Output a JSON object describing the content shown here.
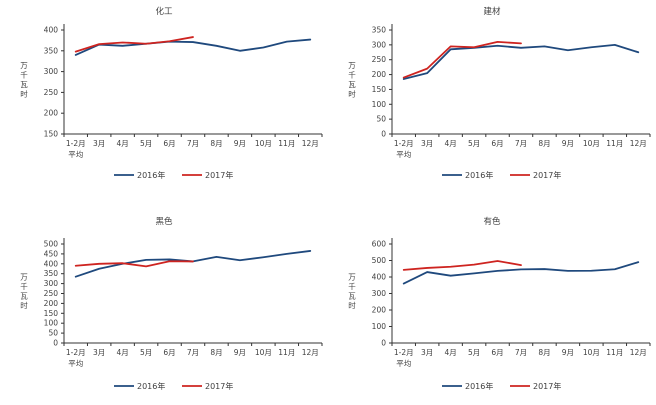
{
  "page": {
    "background": "#ffffff"
  },
  "colors": {
    "series_2016": "#1F497D",
    "series_2017": "#CE2420",
    "axis": "#333333",
    "text": "#404040"
  },
  "chart_data": [
    {
      "type": "line",
      "title": "化工",
      "ylabel": "万千瓦时",
      "xlabel": "",
      "ylim": [
        150,
        400
      ],
      "yticks": [
        150,
        200,
        250,
        300,
        350,
        400
      ],
      "grid": false,
      "legend_position": "bottom",
      "categories": [
        "1-2月",
        "3月",
        "4月",
        "5月",
        "6月",
        "7月",
        "8月",
        "9月",
        "10月",
        "11月",
        "12月"
      ],
      "x_first_line2": "平均",
      "series": [
        {
          "name": "2016年",
          "color": "#1F497D",
          "values": [
            340,
            365,
            362,
            367,
            372,
            371,
            362,
            350,
            358,
            372,
            377
          ]
        },
        {
          "name": "2017年",
          "color": "#CE2420",
          "values": [
            348,
            366,
            370,
            367,
            373,
            383
          ]
        }
      ]
    },
    {
      "type": "line",
      "title": "建材",
      "ylabel": "万千瓦时",
      "xlabel": "",
      "ylim": [
        0,
        350
      ],
      "yticks": [
        0,
        50,
        100,
        150,
        200,
        250,
        300,
        350
      ],
      "grid": false,
      "legend_position": "bottom",
      "categories": [
        "1-2月",
        "3月",
        "4月",
        "5月",
        "6月",
        "7月",
        "8月",
        "9月",
        "10月",
        "11月",
        "12月"
      ],
      "x_first_line2": "平均",
      "series": [
        {
          "name": "2016年",
          "color": "#1F497D",
          "values": [
            185,
            205,
            285,
            290,
            297,
            290,
            295,
            282,
            292,
            300,
            275
          ]
        },
        {
          "name": "2017年",
          "color": "#CE2420",
          "values": [
            190,
            220,
            295,
            292,
            310,
            305
          ]
        }
      ]
    },
    {
      "type": "line",
      "title": "黑色",
      "ylabel": "万千瓦时",
      "xlabel": "",
      "ylim": [
        0,
        500
      ],
      "yticks": [
        0,
        50,
        100,
        150,
        200,
        250,
        300,
        350,
        400,
        450,
        500
      ],
      "grid": false,
      "legend_position": "bottom",
      "categories": [
        "1-2月",
        "3月",
        "4月",
        "5月",
        "6月",
        "7月",
        "8月",
        "9月",
        "10月",
        "11月",
        "12月"
      ],
      "x_first_line2": "平均",
      "series": [
        {
          "name": "2016年",
          "color": "#1F497D",
          "values": [
            335,
            375,
            400,
            420,
            422,
            412,
            435,
            418,
            433,
            450,
            465
          ]
        },
        {
          "name": "2017年",
          "color": "#CE2420",
          "values": [
            390,
            400,
            403,
            387,
            413,
            412
          ]
        }
      ]
    },
    {
      "type": "line",
      "title": "有色",
      "ylabel": "万千瓦时",
      "xlabel": "",
      "ylim": [
        0,
        600
      ],
      "yticks": [
        0,
        100,
        200,
        300,
        400,
        500,
        600
      ],
      "grid": false,
      "legend_position": "bottom",
      "categories": [
        "1-2月",
        "3月",
        "4月",
        "5月",
        "6月",
        "7月",
        "8月",
        "9月",
        "10月",
        "11月",
        "12月"
      ],
      "x_first_line2": "平均",
      "series": [
        {
          "name": "2016年",
          "color": "#1F497D",
          "values": [
            360,
            430,
            408,
            422,
            437,
            446,
            448,
            437,
            438,
            447,
            490
          ]
        },
        {
          "name": "2017年",
          "color": "#CE2420",
          "values": [
            443,
            455,
            462,
            475,
            497,
            472
          ]
        }
      ]
    }
  ]
}
